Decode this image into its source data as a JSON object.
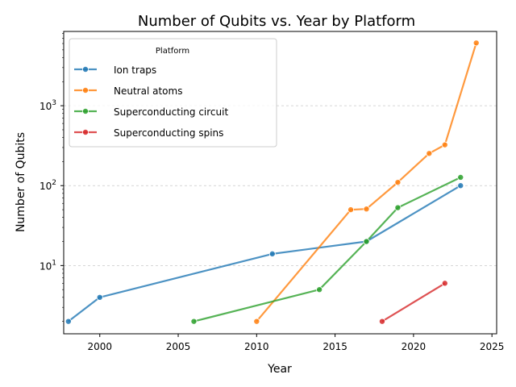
{
  "chart_data": {
    "type": "line",
    "title": "Number of Qubits vs. Year by Platform",
    "xlabel": "Year",
    "ylabel": "Number of Qubits",
    "xlim": [
      1997.7,
      2025.3
    ],
    "ylim": [
      1.4,
      8500
    ],
    "yscale": "log",
    "x_ticks": [
      2000,
      2005,
      2010,
      2015,
      2020,
      2025
    ],
    "y_ticks": [
      {
        "value": 10,
        "label": "10"
      },
      {
        "value": 100,
        "label": "10"
      },
      {
        "value": 1000,
        "label": "10"
      }
    ],
    "y_tick_exponents": [
      "1",
      "2",
      "3"
    ],
    "grid": "y-major-dashed",
    "legend": {
      "title": "Platform",
      "position": "top-left"
    },
    "series": [
      {
        "name": "Ion traps",
        "color": "#1f77b4",
        "points": [
          [
            1998,
            2
          ],
          [
            2000,
            4
          ],
          [
            2011,
            14
          ],
          [
            2017,
            20
          ],
          [
            2023,
            100
          ]
        ]
      },
      {
        "name": "Neutral atoms",
        "color": "#ff7f0e",
        "points": [
          [
            2010,
            2
          ],
          [
            2016,
            50
          ],
          [
            2017,
            51
          ],
          [
            2019,
            110
          ],
          [
            2021,
            253
          ],
          [
            2022,
            324
          ],
          [
            2024,
            6100
          ]
        ]
      },
      {
        "name": "Superconducting circuit",
        "color": "#2ca02c",
        "points": [
          [
            2006,
            2
          ],
          [
            2014,
            5
          ],
          [
            2017,
            20
          ],
          [
            2019,
            53
          ],
          [
            2023,
            127
          ]
        ]
      },
      {
        "name": "Superconducting spins",
        "color": "#d62728",
        "points": [
          [
            2018,
            2
          ],
          [
            2022,
            6
          ]
        ]
      }
    ]
  }
}
